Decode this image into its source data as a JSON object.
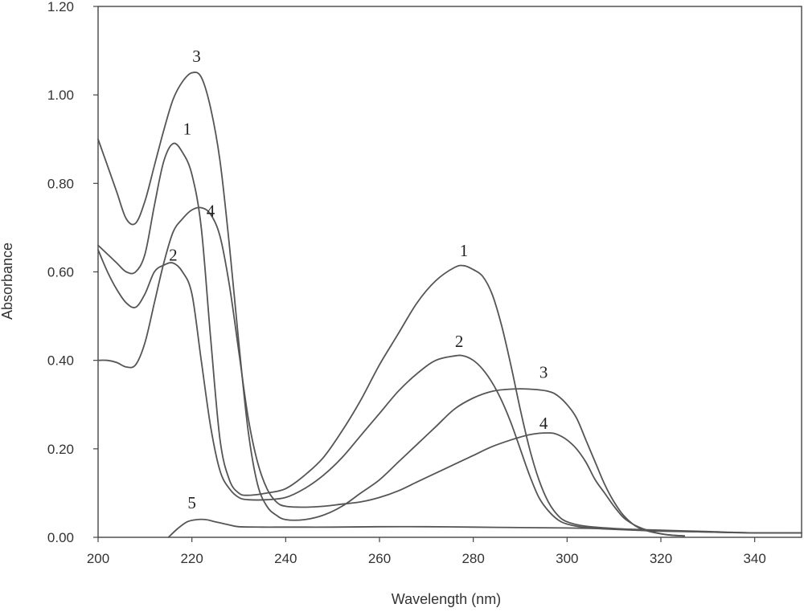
{
  "chart_data": {
    "type": "line",
    "title": "",
    "xlabel": "Wavelength (nm)",
    "ylabel": "Absorbance",
    "xlim": [
      200,
      350
    ],
    "ylim": [
      0,
      1.2
    ],
    "x_ticks": [
      200,
      220,
      240,
      260,
      280,
      300,
      320,
      340
    ],
    "x_tick_labels": [
      "200",
      "220",
      "240",
      "260",
      "280",
      "300",
      "320",
      "340"
    ],
    "y_ticks": [
      0,
      0.2,
      0.4,
      0.6,
      0.8,
      1.0,
      1.2
    ],
    "y_tick_labels": [
      "0.00",
      "0.20",
      "0.40",
      "0.60",
      "0.80",
      "1.00",
      "1.20"
    ],
    "grid": false,
    "legend": "none",
    "line_color": "#555555",
    "series": [
      {
        "label": "1",
        "label_at": [
          219,
          0.91
        ],
        "label_at2": [
          278,
          0.635
        ],
        "points": [
          [
            200,
            0.66
          ],
          [
            202,
            0.64
          ],
          [
            204,
            0.62
          ],
          [
            206,
            0.6
          ],
          [
            208,
            0.6
          ],
          [
            210,
            0.64
          ],
          [
            212,
            0.75
          ],
          [
            214,
            0.85
          ],
          [
            216,
            0.89
          ],
          [
            218,
            0.87
          ],
          [
            220,
            0.82
          ],
          [
            222,
            0.7
          ],
          [
            224,
            0.45
          ],
          [
            226,
            0.22
          ],
          [
            228,
            0.13
          ],
          [
            230,
            0.1
          ],
          [
            232,
            0.095
          ],
          [
            236,
            0.1
          ],
          [
            240,
            0.11
          ],
          [
            244,
            0.14
          ],
          [
            248,
            0.18
          ],
          [
            252,
            0.24
          ],
          [
            256,
            0.31
          ],
          [
            260,
            0.39
          ],
          [
            264,
            0.46
          ],
          [
            268,
            0.53
          ],
          [
            272,
            0.58
          ],
          [
            276,
            0.61
          ],
          [
            278,
            0.614
          ],
          [
            280,
            0.605
          ],
          [
            282,
            0.59
          ],
          [
            284,
            0.55
          ],
          [
            286,
            0.48
          ],
          [
            288,
            0.39
          ],
          [
            290,
            0.29
          ],
          [
            292,
            0.2
          ],
          [
            294,
            0.13
          ],
          [
            296,
            0.08
          ],
          [
            298,
            0.05
          ],
          [
            300,
            0.035
          ],
          [
            304,
            0.025
          ],
          [
            310,
            0.02
          ],
          [
            320,
            0.015
          ],
          [
            330,
            0.012
          ],
          [
            340,
            0.01
          ],
          [
            350,
            0.01
          ]
        ]
      },
      {
        "label": "2",
        "label_at": [
          216,
          0.625
        ],
        "label_at2": [
          277,
          0.43
        ],
        "points": [
          [
            200,
            0.65
          ],
          [
            202,
            0.6
          ],
          [
            204,
            0.56
          ],
          [
            206,
            0.53
          ],
          [
            208,
            0.52
          ],
          [
            210,
            0.55
          ],
          [
            212,
            0.6
          ],
          [
            214,
            0.615
          ],
          [
            216,
            0.62
          ],
          [
            218,
            0.6
          ],
          [
            220,
            0.55
          ],
          [
            222,
            0.4
          ],
          [
            224,
            0.25
          ],
          [
            226,
            0.15
          ],
          [
            228,
            0.11
          ],
          [
            230,
            0.09
          ],
          [
            232,
            0.085
          ],
          [
            236,
            0.085
          ],
          [
            240,
            0.09
          ],
          [
            244,
            0.11
          ],
          [
            248,
            0.14
          ],
          [
            252,
            0.18
          ],
          [
            256,
            0.23
          ],
          [
            260,
            0.28
          ],
          [
            264,
            0.33
          ],
          [
            268,
            0.37
          ],
          [
            272,
            0.4
          ],
          [
            276,
            0.41
          ],
          [
            278,
            0.41
          ],
          [
            280,
            0.4
          ],
          [
            282,
            0.38
          ],
          [
            284,
            0.35
          ],
          [
            286,
            0.31
          ],
          [
            288,
            0.26
          ],
          [
            290,
            0.2
          ],
          [
            292,
            0.14
          ],
          [
            294,
            0.09
          ],
          [
            296,
            0.06
          ],
          [
            298,
            0.04
          ],
          [
            300,
            0.03
          ],
          [
            304,
            0.022
          ],
          [
            310,
            0.018
          ],
          [
            320,
            0.014
          ],
          [
            330,
            0.012
          ],
          [
            340,
            0.01
          ],
          [
            350,
            0.01
          ]
        ]
      },
      {
        "label": "3",
        "label_at": [
          221,
          1.075
        ],
        "label_at2": [
          295,
          0.36
        ],
        "points": [
          [
            200,
            0.9
          ],
          [
            202,
            0.84
          ],
          [
            204,
            0.78
          ],
          [
            206,
            0.72
          ],
          [
            208,
            0.71
          ],
          [
            210,
            0.76
          ],
          [
            212,
            0.84
          ],
          [
            214,
            0.92
          ],
          [
            216,
            0.99
          ],
          [
            218,
            1.03
          ],
          [
            220,
            1.05
          ],
          [
            222,
            1.04
          ],
          [
            224,
            0.97
          ],
          [
            226,
            0.85
          ],
          [
            228,
            0.66
          ],
          [
            230,
            0.44
          ],
          [
            232,
            0.24
          ],
          [
            234,
            0.12
          ],
          [
            236,
            0.07
          ],
          [
            238,
            0.05
          ],
          [
            240,
            0.04
          ],
          [
            244,
            0.04
          ],
          [
            248,
            0.05
          ],
          [
            252,
            0.07
          ],
          [
            256,
            0.1
          ],
          [
            260,
            0.13
          ],
          [
            264,
            0.17
          ],
          [
            268,
            0.21
          ],
          [
            272,
            0.25
          ],
          [
            276,
            0.29
          ],
          [
            280,
            0.315
          ],
          [
            284,
            0.33
          ],
          [
            288,
            0.335
          ],
          [
            292,
            0.335
          ],
          [
            296,
            0.33
          ],
          [
            298,
            0.32
          ],
          [
            300,
            0.3
          ],
          [
            302,
            0.27
          ],
          [
            304,
            0.22
          ],
          [
            306,
            0.17
          ],
          [
            308,
            0.12
          ],
          [
            310,
            0.08
          ],
          [
            312,
            0.05
          ],
          [
            314,
            0.03
          ],
          [
            316,
            0.018
          ],
          [
            318,
            0.012
          ],
          [
            320,
            0.008
          ],
          [
            322,
            0.005
          ],
          [
            325,
            0.003
          ]
        ]
      },
      {
        "label": "4",
        "label_at": [
          224,
          0.725
        ],
        "label_at2": [
          295,
          0.245
        ],
        "points": [
          [
            200,
            0.4
          ],
          [
            202,
            0.4
          ],
          [
            204,
            0.395
          ],
          [
            206,
            0.385
          ],
          [
            208,
            0.39
          ],
          [
            210,
            0.44
          ],
          [
            212,
            0.53
          ],
          [
            214,
            0.62
          ],
          [
            216,
            0.69
          ],
          [
            218,
            0.72
          ],
          [
            220,
            0.74
          ],
          [
            222,
            0.745
          ],
          [
            224,
            0.73
          ],
          [
            226,
            0.68
          ],
          [
            228,
            0.57
          ],
          [
            230,
            0.42
          ],
          [
            232,
            0.27
          ],
          [
            234,
            0.17
          ],
          [
            236,
            0.11
          ],
          [
            238,
            0.08
          ],
          [
            240,
            0.07
          ],
          [
            244,
            0.068
          ],
          [
            248,
            0.07
          ],
          [
            252,
            0.075
          ],
          [
            256,
            0.08
          ],
          [
            260,
            0.09
          ],
          [
            264,
            0.105
          ],
          [
            268,
            0.125
          ],
          [
            272,
            0.145
          ],
          [
            276,
            0.165
          ],
          [
            280,
            0.185
          ],
          [
            284,
            0.205
          ],
          [
            288,
            0.22
          ],
          [
            292,
            0.232
          ],
          [
            296,
            0.236
          ],
          [
            298,
            0.232
          ],
          [
            300,
            0.22
          ],
          [
            302,
            0.2
          ],
          [
            304,
            0.17
          ],
          [
            306,
            0.13
          ],
          [
            308,
            0.1
          ],
          [
            310,
            0.07
          ],
          [
            312,
            0.045
          ],
          [
            314,
            0.03
          ],
          [
            316,
            0.02
          ],
          [
            318,
            0.013
          ],
          [
            320,
            0.008
          ],
          [
            322,
            0.005
          ],
          [
            325,
            0.003
          ]
        ]
      },
      {
        "label": "5",
        "label_at": [
          220,
          0.065
        ],
        "label_at2": null,
        "points": [
          [
            215,
            0.0
          ],
          [
            217,
            0.02
          ],
          [
            219,
            0.035
          ],
          [
            221,
            0.04
          ],
          [
            223,
            0.04
          ],
          [
            225,
            0.035
          ],
          [
            228,
            0.028
          ],
          [
            230,
            0.024
          ],
          [
            235,
            0.023
          ],
          [
            240,
            0.023
          ],
          [
            250,
            0.023
          ],
          [
            260,
            0.024
          ],
          [
            270,
            0.024
          ],
          [
            280,
            0.023
          ],
          [
            290,
            0.022
          ],
          [
            300,
            0.021
          ],
          [
            310,
            0.019
          ],
          [
            320,
            0.016
          ],
          [
            330,
            0.013
          ],
          [
            340,
            0.01
          ],
          [
            350,
            0.01
          ]
        ]
      }
    ]
  }
}
